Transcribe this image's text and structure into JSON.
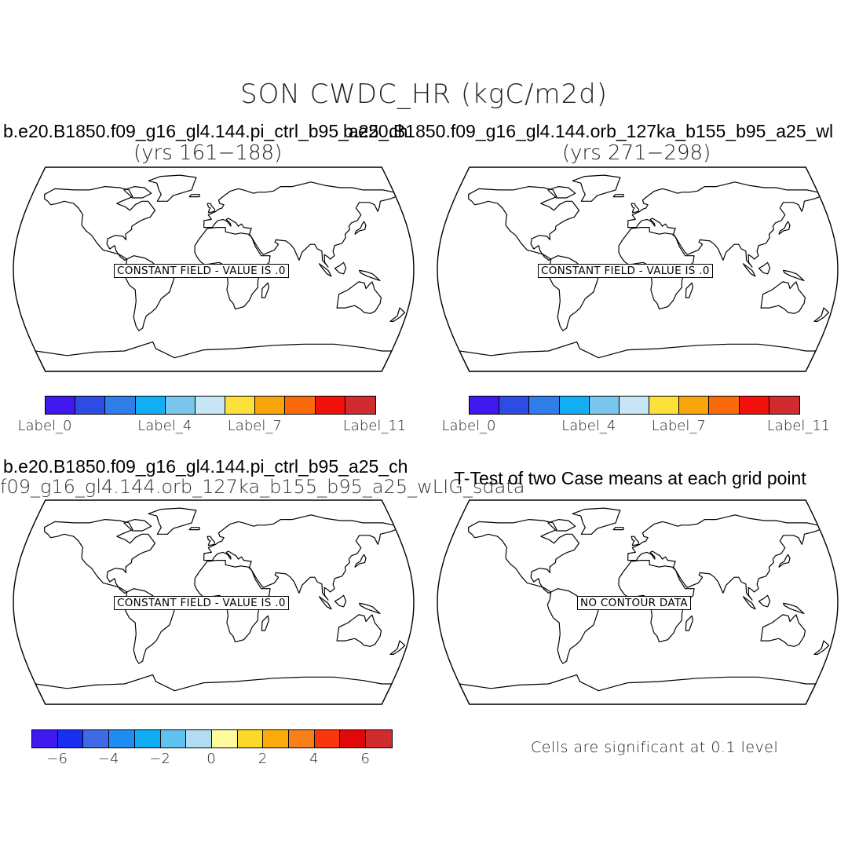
{
  "title": "SON CWDC_HR (kgC/m2d)",
  "panels": [
    {
      "case_title": "b.e20.B1850.f09_g16_gl4.144.pi_ctrl_b95_a25_ch",
      "years": "(yrs 161−188)",
      "message": "CONSTANT FIELD - VALUE IS .0"
    },
    {
      "case_title": "b.e20.B1850.f09_g16_gl4.144.orb_127ka_b155_b95_a25_wl",
      "years": "(yrs 271−298)",
      "message": "CONSTANT FIELD - VALUE IS .0"
    },
    {
      "case_title": "b.e20.B1850.f09_g16_gl4.144.pi_ctrl_b95_a25_ch",
      "subtitle": "f09_g16_gl4.144.orb_127ka_b155_b95_a25_wLIG_sdata",
      "message": "CONSTANT FIELD - VALUE IS .0"
    },
    {
      "case_title": "T-Test of two Case means at each grid point",
      "message": "NO CONTOUR DATA"
    }
  ],
  "case_colorbar": {
    "colors": [
      "#4018f0",
      "#2c4ce4",
      "#2e7de8",
      "#12aef4",
      "#78c6ec",
      "#c6e6f6",
      "#fde03a",
      "#f8a60c",
      "#fa6a0c",
      "#f2100c",
      "#d02c30"
    ],
    "labels": [
      {
        "text": "Label_0",
        "index": 0
      },
      {
        "text": "Label_4",
        "index": 4
      },
      {
        "text": "Label_7",
        "index": 7
      },
      {
        "text": "Label_11",
        "index": 11
      }
    ]
  },
  "diff_colorbar": {
    "colors": [
      "#4018f0",
      "#1a30f0",
      "#3e6ae6",
      "#1e8cf2",
      "#10acf4",
      "#60c2f0",
      "#b2dcf2",
      "#fefa9e",
      "#fdd828",
      "#fbaa0c",
      "#f8801a",
      "#f8380c",
      "#e00808",
      "#d02c30"
    ],
    "ticks": [
      "−6",
      "−4",
      "−2",
      "0",
      "2",
      "4",
      "6"
    ]
  },
  "significance_note": "Cells are significant at 0.1 level"
}
